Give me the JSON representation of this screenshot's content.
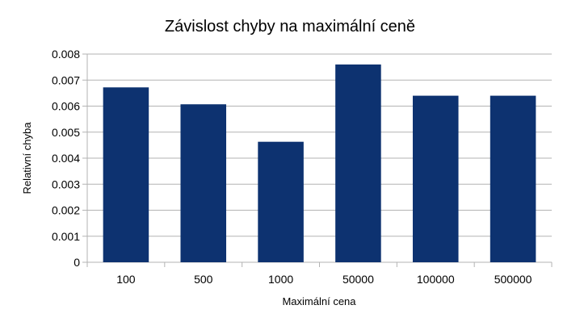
{
  "chart_data": {
    "type": "bar",
    "title": "Závislost chyby na maximální ceně",
    "xlabel": "Maximální cena",
    "ylabel": "Relativní chyba",
    "categories": [
      "100",
      "500",
      "1000",
      "50000",
      "100000",
      "500000"
    ],
    "values": [
      0.00672,
      0.00607,
      0.00463,
      0.0076,
      0.0064,
      0.0064
    ],
    "ylim": [
      0,
      0.008
    ],
    "yticks": [
      "0",
      "0.001",
      "0.002",
      "0.003",
      "0.004",
      "0.005",
      "0.006",
      "0.007",
      "0.008"
    ],
    "grid": true,
    "legend": "none",
    "bar_color": "#0d3270"
  }
}
